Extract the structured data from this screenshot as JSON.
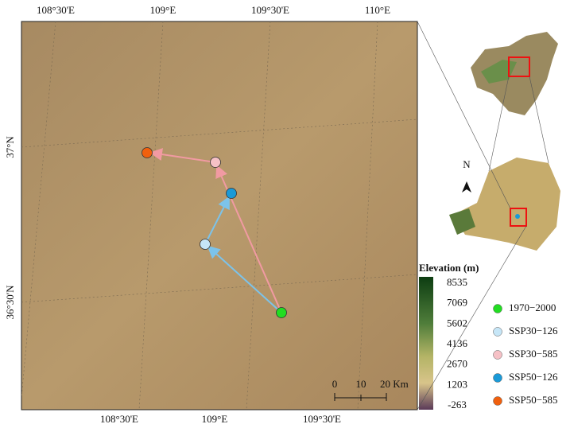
{
  "map": {
    "top_ticks": [
      "108°30'E",
      "109°E",
      "109°30'E",
      "110°E"
    ],
    "bottom_ticks": [
      "108°30'E",
      "109°E",
      "109°30'E"
    ],
    "left_ticks": [
      "37°N",
      "36°30'N"
    ],
    "colorbar": {
      "title": "Elevation (m)",
      "ticks": [
        8535,
        7069,
        5602,
        4136,
        2670,
        1203,
        -263
      ]
    },
    "scale_bar": {
      "labels": [
        "0",
        "10",
        "20 Km"
      ]
    },
    "north": "N",
    "legend": [
      {
        "name": "1970−2000",
        "color": "#22dd22"
      },
      {
        "name": "SSP30−126",
        "color": "#c6e6f7"
      },
      {
        "name": "SSP30−585",
        "color": "#f6c1c6"
      },
      {
        "name": "SSP50−126",
        "color": "#1a9ad8"
      },
      {
        "name": "SSP50−585",
        "color": "#f0600e"
      }
    ]
  }
}
